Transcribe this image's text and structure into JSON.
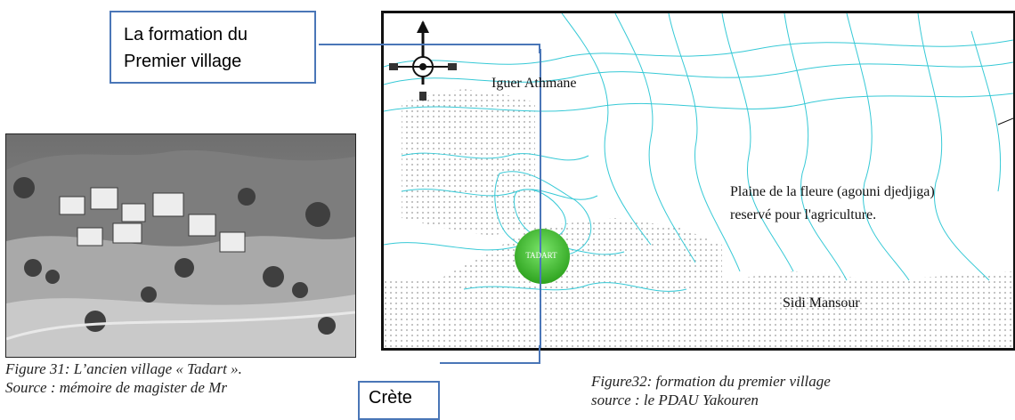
{
  "callouts": {
    "first_village": [
      "La formation du",
      "Premier village"
    ],
    "crete": "Crète"
  },
  "figure31": {
    "caption_line1": "Figure 31: L’ancien village « Tadart ».",
    "caption_line2": "Source : mémoire de magister de Mr"
  },
  "figure32": {
    "caption_line1": "Figure32: formation du premier village",
    "caption_line2": "source : le PDAU Yakouren"
  },
  "map": {
    "labels": {
      "iguer_athmane": "Iguer Athmane",
      "plaine_line1": "Plaine de la fleure (agouni djedjiga)",
      "plaine_line2": "reservé pour l'agriculture.",
      "sidi_mansour": "Sidi  Mansour",
      "tadart": "TADART"
    },
    "colors": {
      "contour": "#36c9d6",
      "village_circle": "#39c22a",
      "callout_border": "#4a76b7",
      "dots": "#9a9a9a"
    }
  }
}
